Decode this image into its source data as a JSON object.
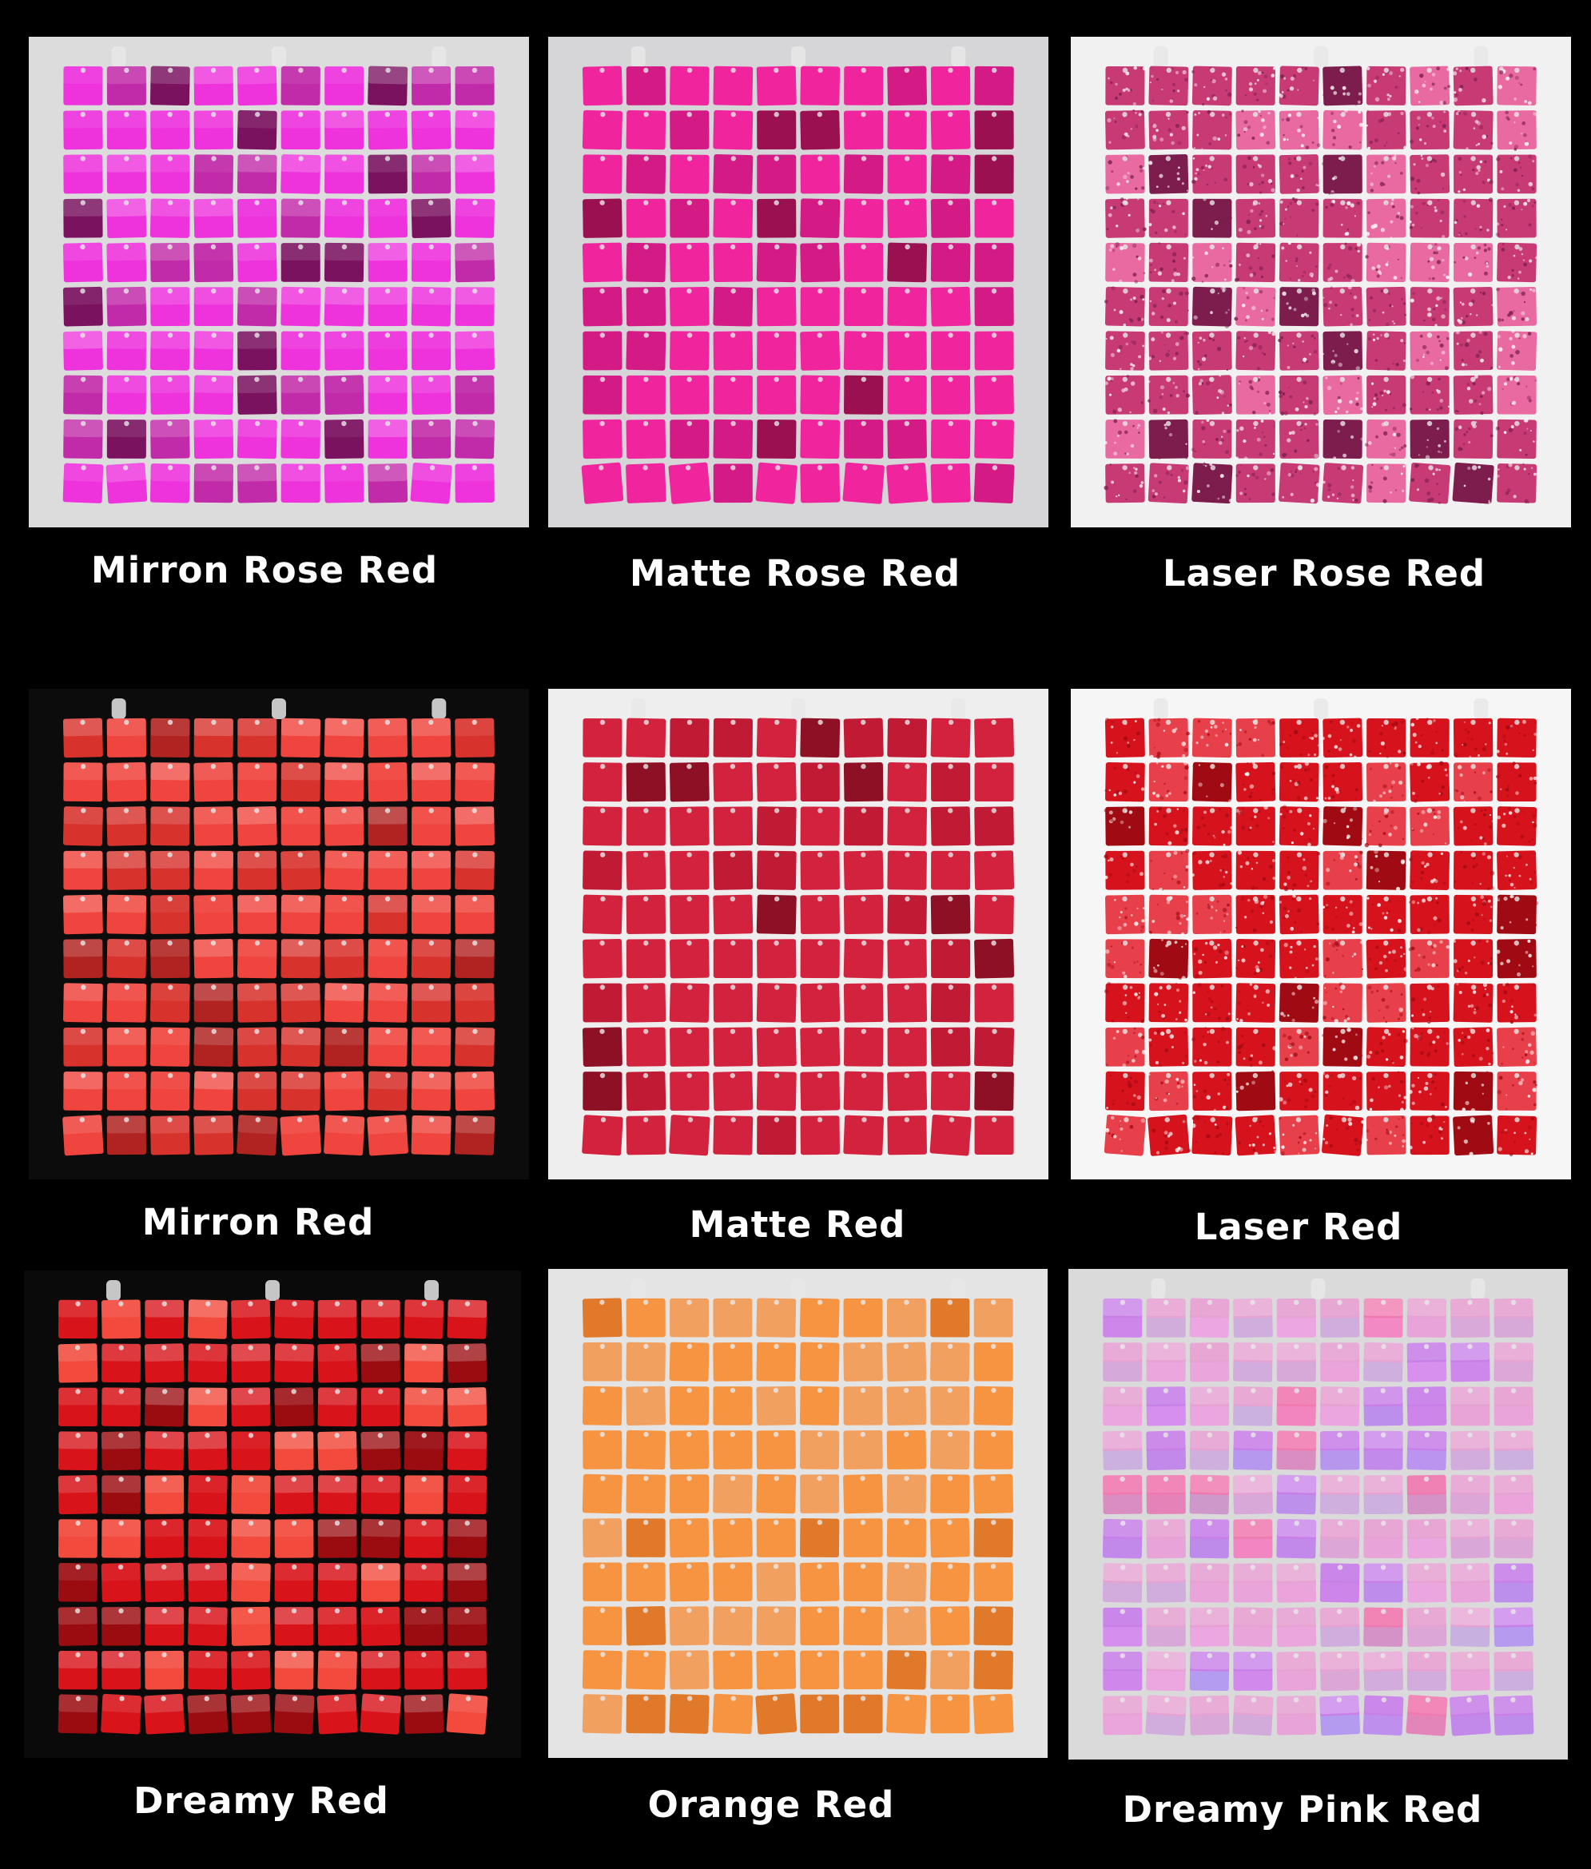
{
  "swatches": [
    {
      "label": "Mirron Rose Red",
      "bg": "#dcdcdc",
      "tile": "#ee33dd",
      "tile_alt": "#c12aa8",
      "tile_dark": "#7a1260",
      "finish": "mirror"
    },
    {
      "label": "Matte Rose Red",
      "bg": "#d6d6d8",
      "tile": "#f0249c",
      "tile_alt": "#d41a85",
      "tile_dark": "#9a1050",
      "finish": "matte"
    },
    {
      "label": "Laser Rose Red",
      "bg": "#f1f1f1",
      "tile": "#c73a74",
      "tile_alt": "#e86aa0",
      "tile_dark": "#7c1d4d",
      "finish": "laser"
    },
    {
      "label": "Mirron Red",
      "bg": "#0c0c0c",
      "tile": "#f0453e",
      "tile_alt": "#d8322c",
      "tile_dark": "#b02320",
      "finish": "mirror"
    },
    {
      "label": "Matte Red",
      "bg": "#eeeeee",
      "tile": "#d3223e",
      "tile_alt": "#c01a34",
      "tile_dark": "#8e1024",
      "finish": "matte"
    },
    {
      "label": "Laser Red",
      "bg": "#f6f6f6",
      "tile": "#d6121c",
      "tile_alt": "#e8404a",
      "tile_dark": "#a00a12",
      "finish": "laser"
    },
    {
      "label": "Dreamy Red",
      "bg": "#0a0a0a",
      "tile": "#d8141a",
      "tile_alt": "#f24a3c",
      "tile_dark": "#9a0c10",
      "finish": "mirror"
    },
    {
      "label": "Orange Red",
      "bg": "#e4e4e4",
      "tile": "#f69442",
      "tile_alt": "#f2a060",
      "tile_dark": "#e07a2a",
      "finish": "matte"
    },
    {
      "label": "Dreamy Pink Red",
      "bg": "#dadada",
      "tile": "#e6a2d2",
      "tile_alt": "#c880e8",
      "tile_dark": "#f07ab0",
      "finish": "holo"
    }
  ]
}
